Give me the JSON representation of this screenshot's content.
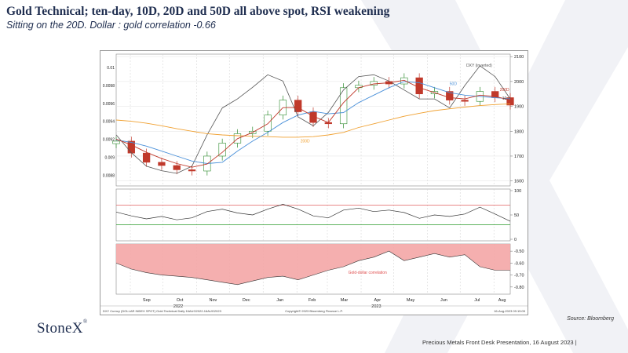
{
  "slide": {
    "title": "Gold Technical; ten-day, 10D, 20D and 50D all above spot, RSI weakening",
    "subtitle": "Sitting on the 20D.  Dollar : gold correlation -0.66",
    "source": "Source: Bloomberg",
    "logo": "StoneX",
    "logo_mark": "®",
    "footer": "Precious Metals Front Desk Presentation, 16 August 2023 |"
  },
  "colors": {
    "title": "#1e2d4f",
    "correlation_fill": "#f4a6a6",
    "ma10": "#c0392b",
    "ma50": "#4a90d9",
    "ma200": "#f0a030",
    "dxy": "#555555",
    "rsi_upper": "#e06060",
    "rsi_lower": "#2a9a2a",
    "candle_up": "#2e8b2e",
    "candle_down": "#c0392b"
  },
  "chart_data": [
    {
      "type": "line",
      "panel": "price",
      "x": [
        "2022-08-19",
        "2022-09-02",
        "2022-09-16",
        "2022-09-30",
        "2022-10-14",
        "2022-10-28",
        "2022-11-11",
        "2022-11-25",
        "2022-12-09",
        "2022-12-23",
        "2023-01-06",
        "2023-01-20",
        "2023-02-03",
        "2023-02-17",
        "2023-03-03",
        "2023-03-17",
        "2023-03-31",
        "2023-04-14",
        "2023-04-28",
        "2023-05-12",
        "2023-05-26",
        "2023-06-09",
        "2023-06-23",
        "2023-07-07",
        "2023-07-21",
        "2023-08-04",
        "2023-08-16"
      ],
      "x_ticks": [
        "Sep",
        "Oct",
        "Nov",
        "Dec",
        "Jan",
        "Feb",
        "Mar",
        "Apr",
        "May",
        "Jun",
        "Jul",
        "Aug"
      ],
      "x_years": [
        "2022",
        "2023"
      ],
      "y_left_ticks": [
        "0.0088",
        "0.009",
        "0.0092",
        "0.0094",
        "0.0096",
        "0.0098",
        "0.01"
      ],
      "y_left_lim": [
        0.00868,
        0.01015
      ],
      "y_right_ticks": [
        "1600",
        "1700",
        "1800",
        "1900",
        "2000",
        "2100"
      ],
      "y_right_lim": [
        1580,
        2110
      ],
      "series": [
        {
          "name": "Gold",
          "axis": "right",
          "render": "candles",
          "values": [
            1760,
            1712,
            1675,
            1662,
            1645,
            1640,
            1700,
            1752,
            1790,
            1800,
            1865,
            1925,
            1878,
            1835,
            1830,
            1975,
            1985,
            2000,
            1990,
            2015,
            1950,
            1960,
            1925,
            1920,
            1960,
            1935,
            1905
          ]
        },
        {
          "name": "",
          "axis": "right",
          "values": [
            1768,
            1745,
            1715,
            1690,
            1670,
            1655,
            1668,
            1715,
            1770,
            1795,
            1830,
            1895,
            1895,
            1860,
            1835,
            1915,
            1975,
            1990,
            1995,
            2005,
            1975,
            1955,
            1935,
            1930,
            1945,
            1940,
            1925
          ]
        },
        {
          "name": "50D",
          "axis": "right",
          "values": [
            1765,
            1755,
            1740,
            1720,
            1700,
            1680,
            1670,
            1675,
            1720,
            1760,
            1795,
            1835,
            1865,
            1880,
            1870,
            1875,
            1915,
            1945,
            1975,
            2000,
            1995,
            1975,
            1955,
            1945,
            1940,
            1935,
            1930
          ]
        },
        {
          "name": "200D",
          "axis": "right",
          "values": [
            1845,
            1840,
            1832,
            1822,
            1810,
            1800,
            1790,
            1785,
            1782,
            1780,
            1778,
            1776,
            1776,
            1778,
            1785,
            1795,
            1815,
            1830,
            1845,
            1860,
            1872,
            1883,
            1890,
            1897,
            1903,
            1907,
            1910
          ]
        },
        {
          "name": "DXY (inverted)",
          "axis": "left",
          "values": [
            0.00925,
            0.00905,
            0.0089,
            0.00885,
            0.00882,
            0.0089,
            0.00925,
            0.00955,
            0.00965,
            0.00978,
            0.00992,
            0.00985,
            0.00945,
            0.00935,
            0.0095,
            0.00975,
            0.0099,
            0.00992,
            0.00985,
            0.00975,
            0.00965,
            0.00965,
            0.00955,
            0.0098,
            0.01002,
            0.0099,
            0.00965
          ]
        }
      ],
      "annotations": [
        "DXY (inverted)",
        "50D",
        "200D",
        "200D",
        "10"
      ]
    },
    {
      "type": "line",
      "panel": "rsi",
      "y_ticks": [
        "0",
        "50",
        "100"
      ],
      "ylim": [
        0,
        100
      ],
      "levels": [
        70,
        30
      ],
      "series": [
        {
          "name": "RSI",
          "values": [
            56,
            48,
            42,
            47,
            40,
            44,
            57,
            62,
            54,
            50,
            62,
            72,
            62,
            48,
            44,
            60,
            64,
            57,
            60,
            55,
            43,
            50,
            47,
            52,
            66,
            52,
            37
          ]
        }
      ]
    },
    {
      "type": "area",
      "panel": "correlation",
      "y_ticks": [
        "-0.50",
        "-0.60",
        "-0.70",
        "-0.80"
      ],
      "ylim": [
        -0.86,
        -0.44
      ],
      "series": [
        {
          "name": "Gold-dollar correlation",
          "values": [
            -0.6,
            -0.65,
            -0.68,
            -0.7,
            -0.71,
            -0.72,
            -0.74,
            -0.76,
            -0.78,
            -0.75,
            -0.72,
            -0.71,
            -0.74,
            -0.7,
            -0.66,
            -0.63,
            -0.58,
            -0.55,
            -0.5,
            -0.58,
            -0.55,
            -0.52,
            -0.55,
            -0.53,
            -0.63,
            -0.66,
            -0.66
          ]
        }
      ]
    }
  ],
  "bloomberg_footer": {
    "left": "DXY Curncy (DOLLAR INDEX SPOT) Gold Technical  Daily  16AUG2022-16AUG2023",
    "center": "Copyright© 2023 Bloomberg Finance L.P.",
    "right": "16-Aug-2023 09:15:05"
  }
}
